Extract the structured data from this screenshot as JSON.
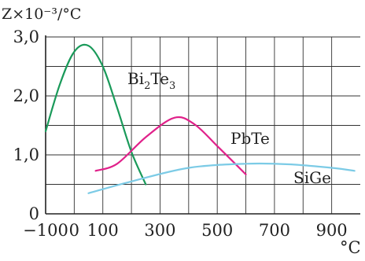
{
  "colors": {
    "Bi2Te3": "#1a9a5a",
    "PbTe": "#e0218a",
    "SiGe": "#7ccbe6",
    "grid": "#333333",
    "background": "#ffffff"
  },
  "chart_data": {
    "type": "line",
    "ylabel": "Z×10⁻³/°C",
    "xlabel": "°C",
    "xlim": [
      -100,
      1000
    ],
    "ylim": [
      0,
      3
    ],
    "grid": true,
    "x_ticks": [
      -100,
      0,
      100,
      300,
      500,
      700,
      900
    ],
    "x_tick_labels": [
      "−100",
      "0",
      "100",
      "300",
      "500",
      "700",
      "900"
    ],
    "y_ticks": [
      0,
      1,
      2,
      3
    ],
    "y_tick_labels": [
      "0",
      "1,0",
      "2,0",
      "3,0"
    ],
    "series": [
      {
        "name": "Bi2Te3",
        "label_main": "Bi",
        "label_sub1": "2",
        "label_mid": "Te",
        "label_sub2": "3",
        "x": [
          -100,
          -50,
          0,
          50,
          100,
          150,
          200,
          250
        ],
        "y": [
          1.4,
          2.2,
          2.75,
          2.85,
          2.5,
          1.8,
          1.05,
          0.5
        ]
      },
      {
        "name": "PbTe",
        "label": "PbTe",
        "x": [
          75,
          150,
          250,
          350,
          420,
          500,
          600
        ],
        "y": [
          0.73,
          0.85,
          1.3,
          1.63,
          1.52,
          1.15,
          0.67
        ]
      },
      {
        "name": "SiGe",
        "label": "SiGe",
        "x": [
          50,
          200,
          400,
          600,
          750,
          900,
          980
        ],
        "y": [
          0.35,
          0.55,
          0.78,
          0.85,
          0.84,
          0.78,
          0.73
        ]
      }
    ]
  }
}
